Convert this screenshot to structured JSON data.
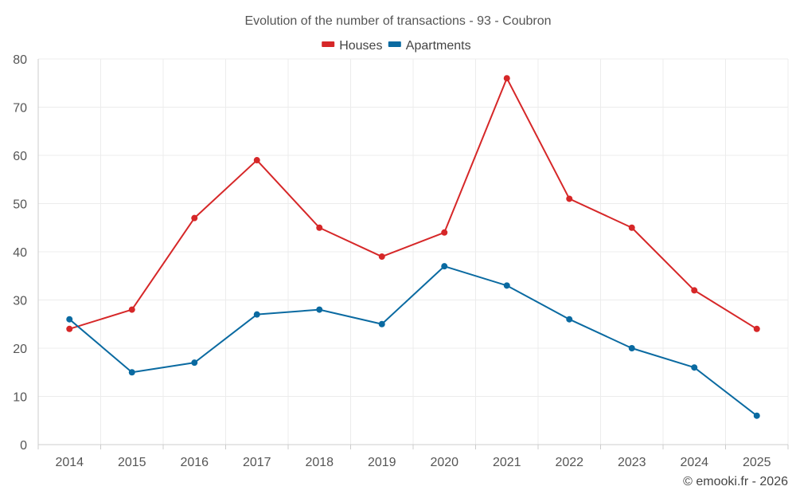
{
  "chart_data": {
    "type": "line",
    "title": "Evolution of the number of transactions - 93 - Coubron",
    "categories": [
      "2014",
      "2015",
      "2016",
      "2017",
      "2018",
      "2019",
      "2020",
      "2021",
      "2022",
      "2023",
      "2024",
      "2025"
    ],
    "series": [
      {
        "name": "Houses",
        "color": "#d62728",
        "values": [
          24,
          28,
          47,
          59,
          45,
          39,
          44,
          76,
          51,
          45,
          32,
          24
        ]
      },
      {
        "name": "Apartments",
        "color": "#0a6aa1",
        "values": [
          26,
          15,
          17,
          27,
          28,
          25,
          37,
          33,
          26,
          20,
          16,
          6
        ]
      }
    ],
    "ylim": [
      0,
      80
    ],
    "yticks": [
      0,
      10,
      20,
      30,
      40,
      50,
      60,
      70,
      80
    ],
    "xlabel": "",
    "ylabel": "",
    "grid": true,
    "legend": "top-center"
  },
  "credit": "© emooki.fr - 2026"
}
